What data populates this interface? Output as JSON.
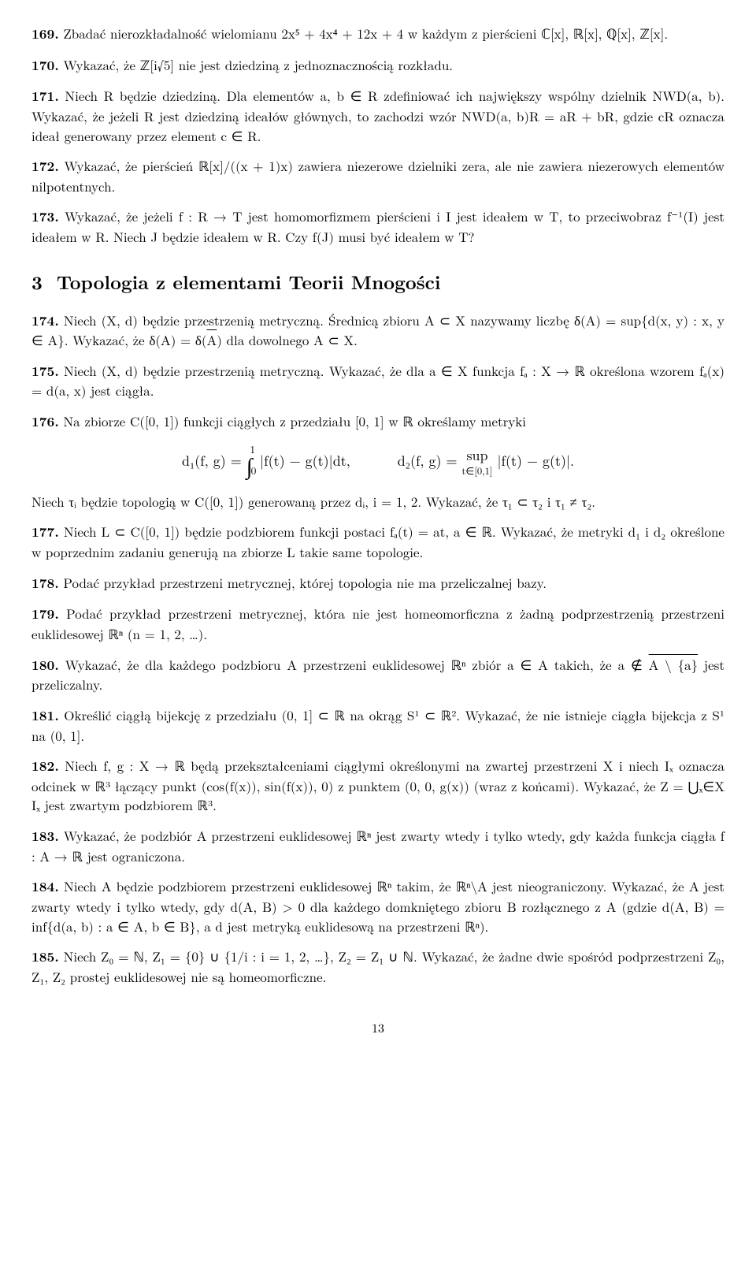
{
  "page_number": "13",
  "section": {
    "number": "3",
    "title": "Topologia z elementami Teorii Mnogości"
  },
  "problems": {
    "p169": {
      "num": "169.",
      "text": "Zbadać nierozkładalność wielomianu 2x⁵ + 4x⁴ + 12x + 4 w każdym z pierścieni ℂ[x], ℝ[x], ℚ[x], ℤ[x]."
    },
    "p170": {
      "num": "170.",
      "text": "Wykazać, że ℤ[i√5] nie jest dziedziną z jednoznacznością rozkładu."
    },
    "p171": {
      "num": "171.",
      "text": "Niech R będzie dziedziną. Dla elementów a, b ∈ R zdefiniować ich największy wspólny dzielnik NWD(a, b). Wykazać, że jeżeli R jest dziedziną ideałów głównych, to zachodzi wzór NWD(a, b)R = aR + bR, gdzie cR oznacza ideał generowany przez element c ∈ R."
    },
    "p172": {
      "num": "172.",
      "text": "Wykazać, że pierścień ℝ[x]/((x + 1)x) zawiera niezerowe dzielniki zera, ale nie zawiera niezerowych elementów nilpotentnych."
    },
    "p173": {
      "num": "173.",
      "text": "Wykazać, że jeżeli f : R → T jest homomorfizmem pierścieni i I jest ideałem w T, to przeciwobraz f⁻¹(I) jest ideałem w R. Niech J będzie ideałem w R. Czy f(J) musi być ideałem w T?"
    },
    "p174": {
      "num": "174.",
      "text_a": "Niech (X, d) będzie przestrzenią metryczną. Średnicą zbioru A ⊂ X nazywamy liczbę δ(A) = sup{d(x, y) : x, y ∈ A}. Wykazać, że δ(A) = δ(",
      "text_b": ") dla dowolnego A ⊂ X.",
      "overline": "A"
    },
    "p175": {
      "num": "175.",
      "text": "Niech (X, d) będzie przestrzenią metryczną. Wykazać, że dla a ∈ X funkcja fₐ : X → ℝ określona wzorem fₐ(x) = d(a, x) jest ciągła."
    },
    "p176": {
      "num": "176.",
      "text": "Na zbiorze C([0, 1]) funkcji ciągłych z przedziału [0, 1] w ℝ określamy metryki",
      "formula_left": "d₁(f, g) = ",
      "formula_int": "∫₀¹ |f(t) − g(t)|dt,",
      "formula_right_a": "d₂(f, g) = ",
      "formula_sup": "sup",
      "formula_supsub": "t∈[0,1]",
      "formula_right_b": " |f(t) − g(t)|.",
      "text2": "Niech τᵢ będzie topologią w C([0, 1]) generowaną przez dᵢ, i = 1, 2. Wykazać, że τ₁ ⊂ τ₂ i τ₁ ≠ τ₂."
    },
    "p177": {
      "num": "177.",
      "text": "Niech L ⊂ C([0, 1]) będzie podzbiorem funkcji postaci fₐ(t) = at, a ∈ ℝ. Wykazać, że metryki d₁ i d₂ określone w poprzednim zadaniu generują na zbiorze L takie same topologie."
    },
    "p178": {
      "num": "178.",
      "text": "Podać przykład przestrzeni metrycznej, której topologia nie ma przeliczalnej bazy."
    },
    "p179": {
      "num": "179.",
      "text": "Podać przykład przestrzeni metrycznej, która nie jest homeomorficzna z żadną podprzestrzenią przestrzeni euklidesowej ℝⁿ (n = 1, 2, …)."
    },
    "p180": {
      "num": "180.",
      "text_a": "Wykazać, że dla każdego podzbioru A przestrzeni euklidesowej ℝⁿ zbiór a ∈ A takich, że a ∉ ",
      "overline": "A \\ {a}",
      "text_b": " jest przeliczalny."
    },
    "p181": {
      "num": "181.",
      "text": "Określić ciągłą bijekcję z przedziału (0, 1] ⊂ ℝ na okrąg S¹ ⊂ ℝ². Wykazać, że nie istnieje ciągła bijekcja z S¹ na (0, 1]."
    },
    "p182": {
      "num": "182.",
      "text": "Niech f, g : X → ℝ będą przekształceniami ciągłymi określonymi na zwartej przestrzeni X i niech Iₓ oznacza odcinek w ℝ³ łączący punkt (cos(f(x)), sin(f(x)), 0) z punktem (0, 0, g(x)) (wraz z końcami). Wykazać, że Z = ⋃ₓ∈X Iₓ jest zwartym podzbiorem ℝ³."
    },
    "p183": {
      "num": "183.",
      "text": "Wykazać, że podzbiór A przestrzeni euklidesowej ℝⁿ jest zwarty wtedy i tylko wtedy, gdy każda funkcja ciągła f : A → ℝ jest ograniczona."
    },
    "p184": {
      "num": "184.",
      "text": "Niech A będzie podzbiorem przestrzeni euklidesowej ℝⁿ takim, że ℝⁿ\\A jest nieograniczony. Wykazać, że A jest zwarty wtedy i tylko wtedy, gdy d(A, B) > 0 dla każdego domkniętego zbioru B rozłącznego z A (gdzie d(A, B) = inf{d(a, b) : a ∈ A, b ∈ B}, a d jest metryką euklidesową na przestrzeni ℝⁿ)."
    },
    "p185": {
      "num": "185.",
      "text": "Niech Z₀ = ℕ, Z₁ = {0} ∪ {1/i : i = 1, 2, …}, Z₂ = Z₁ ∪ ℕ. Wykazać, że żadne dwie spośród podprzestrzeni Z₀, Z₁, Z₂ prostej euklidesowej nie są homeomorficzne."
    }
  }
}
